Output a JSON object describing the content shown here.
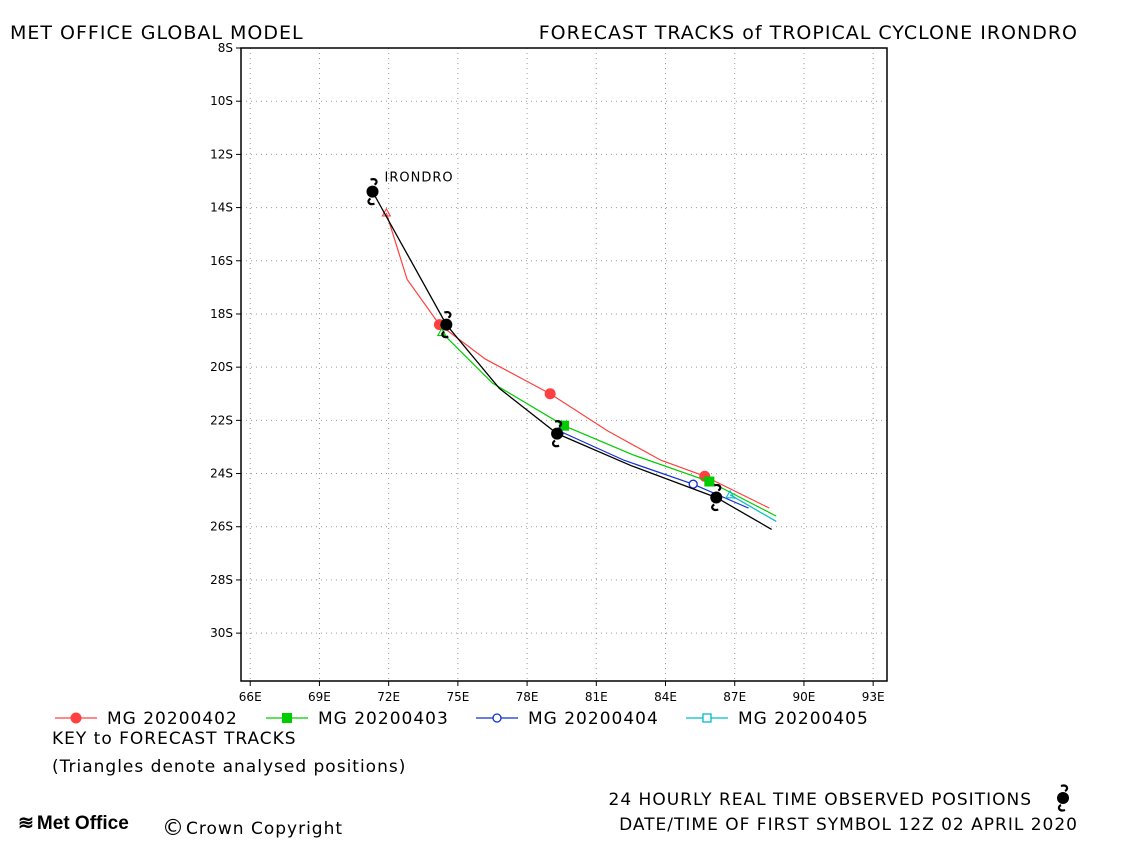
{
  "header": {
    "left": "MET OFFICE GLOBAL MODEL",
    "right": "FORECAST TRACKS of TROPICAL CYCLONE IRONDRO"
  },
  "chart_data": {
    "type": "line",
    "title": "FORECAST TRACKS of TROPICAL CYCLONE IRONDRO",
    "xlim": [
      65.6,
      93.6
    ],
    "ylim": [
      -31.8,
      -8.0
    ],
    "x_ticks": [
      66,
      69,
      72,
      75,
      78,
      81,
      84,
      87,
      90,
      93
    ],
    "x_tick_labels": [
      "66E",
      "69E",
      "72E",
      "75E",
      "78E",
      "81E",
      "84E",
      "87E",
      "90E",
      "93E"
    ],
    "y_ticks": [
      -8,
      -10,
      -12,
      -14,
      -16,
      -18,
      -20,
      -22,
      -24,
      -26,
      -28,
      -30
    ],
    "y_tick_labels": [
      "8S",
      "10S",
      "12S",
      "14S",
      "16S",
      "18S",
      "20S",
      "22S",
      "24S",
      "26S",
      "28S",
      "30S"
    ],
    "grid": true,
    "storm_label": "IRONDRO",
    "observed": {
      "name": "24 HOURLY REAL TIME OBSERVED POSITIONS",
      "color": "#000000",
      "line": [
        [
          71.3,
          -13.4
        ],
        [
          72.9,
          -15.9
        ],
        [
          74.5,
          -18.4
        ],
        [
          76.8,
          -20.8
        ],
        [
          79.3,
          -22.5
        ],
        [
          82.5,
          -23.7
        ],
        [
          86.2,
          -24.9
        ],
        [
          88.6,
          -26.1
        ]
      ],
      "symbols": [
        [
          71.3,
          -13.4
        ],
        [
          74.5,
          -18.4
        ],
        [
          79.3,
          -22.5
        ],
        [
          86.2,
          -24.9
        ]
      ]
    },
    "series": [
      {
        "name": "MG 20200402",
        "color": "#ff4040",
        "marker": "filled-circle",
        "analysed": [
          71.9,
          -14.2
        ],
        "line": [
          [
            71.9,
            -14.2
          ],
          [
            72.8,
            -16.7
          ],
          [
            74.2,
            -18.4
          ],
          [
            76.2,
            -19.7
          ],
          [
            79.0,
            -21.0
          ],
          [
            81.5,
            -22.4
          ],
          [
            83.8,
            -23.5
          ],
          [
            85.7,
            -24.1
          ],
          [
            88.5,
            -25.3
          ]
        ],
        "markers": [
          [
            74.2,
            -18.4
          ],
          [
            79.0,
            -21.0
          ],
          [
            85.7,
            -24.1
          ]
        ]
      },
      {
        "name": "MG 20200403",
        "color": "#00cc00",
        "marker": "filled-square",
        "analysed": [
          74.3,
          -18.7
        ],
        "line": [
          [
            74.3,
            -18.7
          ],
          [
            76.5,
            -20.6
          ],
          [
            79.6,
            -22.2
          ],
          [
            82.6,
            -23.3
          ],
          [
            85.9,
            -24.3
          ],
          [
            88.8,
            -25.6
          ]
        ],
        "markers": [
          [
            79.6,
            -22.2
          ],
          [
            85.9,
            -24.3
          ]
        ]
      },
      {
        "name": "MG 20200404",
        "color": "#1030d0",
        "marker": "open-circle",
        "analysed": [
          79.4,
          -22.4
        ],
        "line": [
          [
            79.4,
            -22.4
          ],
          [
            82.2,
            -23.5
          ],
          [
            85.2,
            -24.4
          ],
          [
            87.6,
            -25.3
          ]
        ],
        "markers": [
          [
            85.2,
            -24.4
          ]
        ]
      },
      {
        "name": "MG 20200405",
        "color": "#00bbcc",
        "marker": "open-square",
        "analysed": [
          86.8,
          -24.8
        ],
        "line": [
          [
            86.8,
            -24.8
          ],
          [
            88.8,
            -25.8
          ]
        ],
        "markers": []
      }
    ]
  },
  "legend": {
    "items": [
      {
        "label": "MG 20200402",
        "color": "#ff4040",
        "marker": "filled-circle"
      },
      {
        "label": "MG 20200403",
        "color": "#00cc00",
        "marker": "filled-square"
      },
      {
        "label": "MG 20200404",
        "color": "#1030d0",
        "marker": "open-circle"
      },
      {
        "label": "MG 20200405",
        "color": "#00bbcc",
        "marker": "open-square"
      }
    ],
    "key_title": "KEY to FORECAST TRACKS",
    "key_note": "(Triangles denote analysed positions)"
  },
  "footer": {
    "observed_label": "24 HOURLY REAL TIME OBSERVED POSITIONS",
    "datetime_label": "DATE/TIME OF FIRST SYMBOL 12Z 02 APRIL 2020",
    "logo": "Met Office",
    "copyright": "Crown Copyright"
  }
}
